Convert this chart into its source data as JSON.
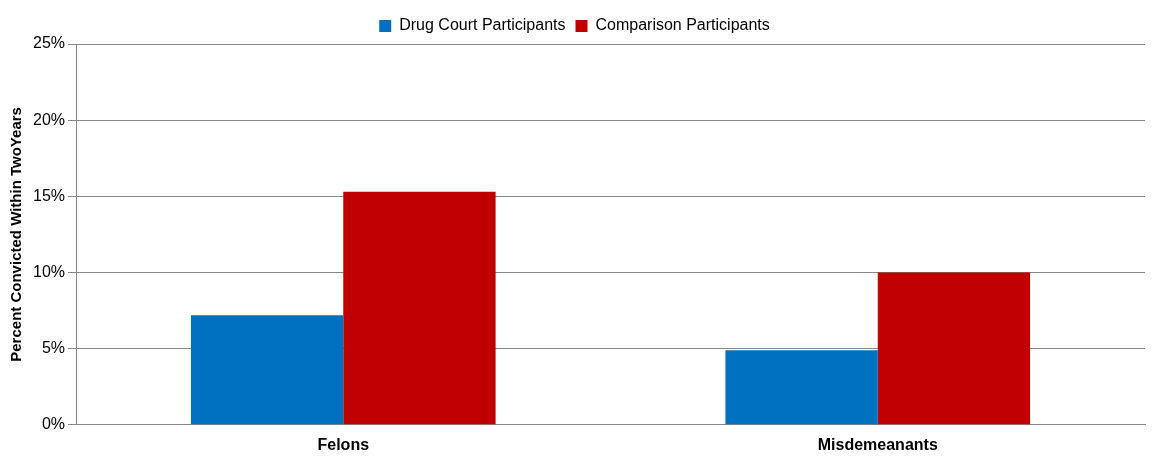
{
  "chart_data": {
    "type": "bar",
    "ylabel": "Percent Convicted Within TwoYears",
    "categories": [
      "Felons",
      "Misdemeanants"
    ],
    "series": [
      {
        "name": "Drug Court Participants",
        "color": "#0070c0",
        "values": [
          7.2,
          4.9
        ]
      },
      {
        "name": "Comparison Participants",
        "color": "#c00000",
        "values": [
          15.3,
          10.0
        ]
      }
    ],
    "ylim": [
      0,
      25
    ],
    "yticks": [
      {
        "value": 0,
        "label": "0%"
      },
      {
        "value": 5,
        "label": "5%"
      },
      {
        "value": 10,
        "label": "10%"
      },
      {
        "value": 15,
        "label": "15%"
      },
      {
        "value": 20,
        "label": "20%"
      },
      {
        "value": 25,
        "label": "25%"
      }
    ],
    "grid": "y",
    "legend": "top"
  }
}
